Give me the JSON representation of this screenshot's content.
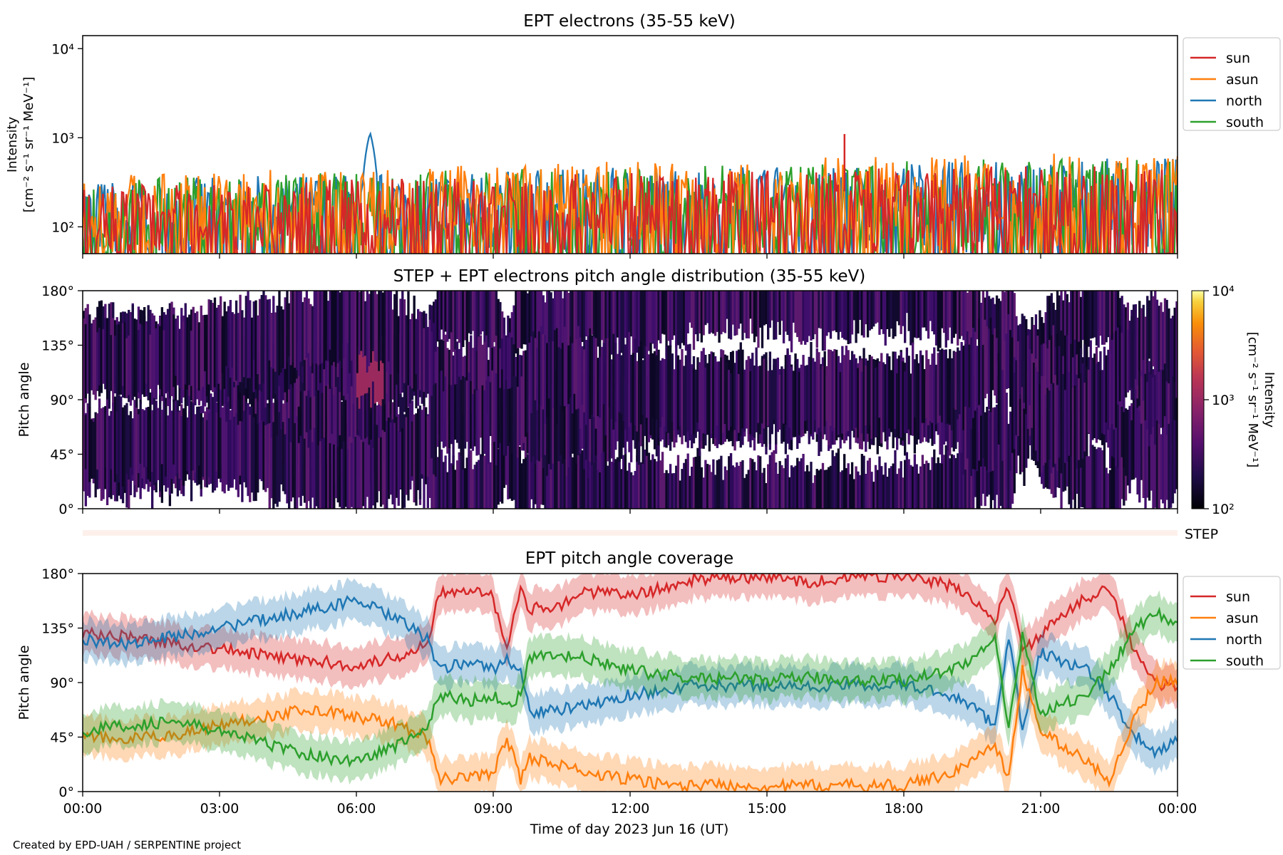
{
  "time_labels": [
    "00:00",
    "03:00",
    "06:00",
    "09:00",
    "12:00",
    "15:00",
    "18:00",
    "21:00",
    "00:00"
  ],
  "xlabel": "Time of day 2023 Jun 16 (UT)",
  "credit": "Created by EPD-UAH / SERPENTINE project",
  "colors": {
    "sun": "#d62728",
    "asun": "#ff7f0e",
    "north": "#1f77b4",
    "south": "#2ca02c"
  },
  "chart_data": [
    {
      "type": "line",
      "title": "EPT electrons (35-55 keV)",
      "ylabel_lines": [
        "Intensity",
        "[cm⁻² s⁻¹ sr⁻¹ MeV⁻¹]"
      ],
      "yscale": "log",
      "ylim": [
        50,
        14000
      ],
      "yticks": [
        {
          "v": 100,
          "label": "10²"
        },
        {
          "v": 1000,
          "label": "10³"
        },
        {
          "v": 10000,
          "label": "10⁴"
        }
      ],
      "xlim_hours": [
        0,
        24
      ],
      "legend": {
        "placement": "outside-right",
        "entries": [
          "sun",
          "asun",
          "north",
          "south"
        ]
      },
      "series": [
        {
          "name": "sun",
          "baseline": 130,
          "noise_range": [
            50,
            520
          ]
        },
        {
          "name": "asun",
          "baseline": 140,
          "noise_range": [
            50,
            700
          ]
        },
        {
          "name": "north",
          "baseline": 140,
          "noise_range": [
            50,
            600
          ],
          "peaks": [
            {
              "x_hours": 6.3,
              "y": 1150
            }
          ]
        },
        {
          "name": "south",
          "baseline": 140,
          "noise_range": [
            50,
            620
          ]
        }
      ],
      "annotations": [
        {
          "series": "sun",
          "x_hours": 16.7,
          "y": 1100
        }
      ]
    },
    {
      "type": "heatmap",
      "title": "STEP + EPT electrons pitch angle distribution (35-55 keV)",
      "ylabel": "Pitch angle",
      "yticks": [
        "0°",
        "45°",
        "90°",
        "135°",
        "180°"
      ],
      "ylim": [
        0,
        180
      ],
      "xlim_hours": [
        0,
        24
      ],
      "colorbar": {
        "label": "Intensity",
        "units": "[cm⁻² s⁻¹ sr⁻¹ MeV⁻¹]",
        "scale": "log",
        "range": [
          100,
          10000
        ],
        "ticks": [
          "10²",
          "10³",
          "10⁴"
        ],
        "colormap": "inferno"
      },
      "band_label": "STEP"
    },
    {
      "type": "line",
      "title": "EPT pitch angle coverage",
      "ylabel": "Pitch angle",
      "yticks": [
        "0°",
        "45°",
        "90°",
        "135°",
        "180°"
      ],
      "ylim": [
        0,
        180
      ],
      "xlim_hours": [
        0,
        24
      ],
      "legend": {
        "placement": "outside-right",
        "entries": [
          "sun",
          "asun",
          "north",
          "south"
        ]
      },
      "series": [
        {
          "name": "sun",
          "points": [
            [
              0,
              130
            ],
            [
              1,
              128
            ],
            [
              2,
              122
            ],
            [
              3,
              118
            ],
            [
              4,
              112
            ],
            [
              5,
              108
            ],
            [
              6,
              104
            ],
            [
              7,
              112
            ],
            [
              7.6,
              125
            ],
            [
              7.8,
              165
            ],
            [
              8.5,
              168
            ],
            [
              9,
              160
            ],
            [
              9.3,
              115
            ],
            [
              9.6,
              168
            ],
            [
              9.8,
              150
            ],
            [
              10.5,
              155
            ],
            [
              11,
              165
            ],
            [
              12,
              162
            ],
            [
              13,
              170
            ],
            [
              13.3,
              175
            ],
            [
              14,
              176
            ],
            [
              15,
              177
            ],
            [
              16,
              173
            ],
            [
              17,
              178
            ],
            [
              18,
              178
            ],
            [
              19,
              170
            ],
            [
              19.5,
              160
            ],
            [
              20,
              140
            ],
            [
              20.3,
              170
            ],
            [
              20.6,
              115
            ],
            [
              21,
              130
            ],
            [
              22,
              160
            ],
            [
              22.5,
              170
            ],
            [
              23,
              120
            ],
            [
              23.5,
              90
            ],
            [
              24,
              85
            ]
          ]
        },
        {
          "name": "asun",
          "points": [
            [
              0,
              45
            ],
            [
              1,
              43
            ],
            [
              2,
              47
            ],
            [
              3,
              55
            ],
            [
              4,
              62
            ],
            [
              5,
              68
            ],
            [
              6,
              62
            ],
            [
              7,
              55
            ],
            [
              7.6,
              42
            ],
            [
              7.8,
              10
            ],
            [
              8.5,
              12
            ],
            [
              9,
              15
            ],
            [
              9.3,
              45
            ],
            [
              9.6,
              10
            ],
            [
              9.8,
              28
            ],
            [
              10.5,
              22
            ],
            [
              11,
              15
            ],
            [
              12,
              10
            ],
            [
              13,
              5
            ],
            [
              13.3,
              5
            ],
            [
              14,
              6
            ],
            [
              15,
              4
            ],
            [
              16,
              5
            ],
            [
              17,
              5
            ],
            [
              18,
              5
            ],
            [
              19,
              15
            ],
            [
              19.5,
              25
            ],
            [
              20,
              40
            ],
            [
              20.3,
              10
            ],
            [
              20.6,
              100
            ],
            [
              21,
              50
            ],
            [
              22,
              25
            ],
            [
              22.5,
              10
            ],
            [
              23,
              55
            ],
            [
              23.5,
              90
            ],
            [
              24,
              92
            ]
          ]
        },
        {
          "name": "north",
          "points": [
            [
              0,
              125
            ],
            [
              1,
              122
            ],
            [
              2,
              128
            ],
            [
              3,
              135
            ],
            [
              4,
              142
            ],
            [
              5,
              150
            ],
            [
              6,
              158
            ],
            [
              7,
              140
            ],
            [
              7.6,
              125
            ],
            [
              7.8,
              100
            ],
            [
              8.5,
              108
            ],
            [
              9,
              100
            ],
            [
              9.3,
              110
            ],
            [
              9.6,
              100
            ],
            [
              9.8,
              65
            ],
            [
              10.5,
              68
            ],
            [
              11,
              70
            ],
            [
              12,
              80
            ],
            [
              13,
              85
            ],
            [
              13.3,
              87
            ],
            [
              14,
              87
            ],
            [
              15,
              88
            ],
            [
              16,
              86
            ],
            [
              17,
              88
            ],
            [
              18,
              88
            ],
            [
              19,
              80
            ],
            [
              19.5,
              70
            ],
            [
              20,
              55
            ],
            [
              20.3,
              130
            ],
            [
              20.6,
              50
            ],
            [
              21,
              115
            ],
            [
              22,
              100
            ],
            [
              22.5,
              80
            ],
            [
              23,
              50
            ],
            [
              23.5,
              30
            ],
            [
              24,
              45
            ]
          ]
        },
        {
          "name": "south",
          "points": [
            [
              0,
              50
            ],
            [
              1,
              55
            ],
            [
              2,
              58
            ],
            [
              3,
              50
            ],
            [
              4,
              40
            ],
            [
              5,
              30
            ],
            [
              6,
              25
            ],
            [
              7,
              40
            ],
            [
              7.6,
              55
            ],
            [
              7.8,
              80
            ],
            [
              8.5,
              75
            ],
            [
              9,
              80
            ],
            [
              9.3,
              70
            ],
            [
              9.6,
              80
            ],
            [
              9.8,
              110
            ],
            [
              10.5,
              112
            ],
            [
              11,
              110
            ],
            [
              12,
              100
            ],
            [
              13,
              95
            ],
            [
              13.3,
              93
            ],
            [
              14,
              94
            ],
            [
              15,
              92
            ],
            [
              16,
              94
            ],
            [
              17,
              92
            ],
            [
              18,
              92
            ],
            [
              19,
              100
            ],
            [
              19.5,
              110
            ],
            [
              20,
              125
            ],
            [
              20.3,
              50
            ],
            [
              20.6,
              130
            ],
            [
              21,
              65
            ],
            [
              22,
              80
            ],
            [
              22.5,
              100
            ],
            [
              23,
              130
            ],
            [
              23.5,
              150
            ],
            [
              24,
              135
            ]
          ]
        }
      ]
    }
  ]
}
